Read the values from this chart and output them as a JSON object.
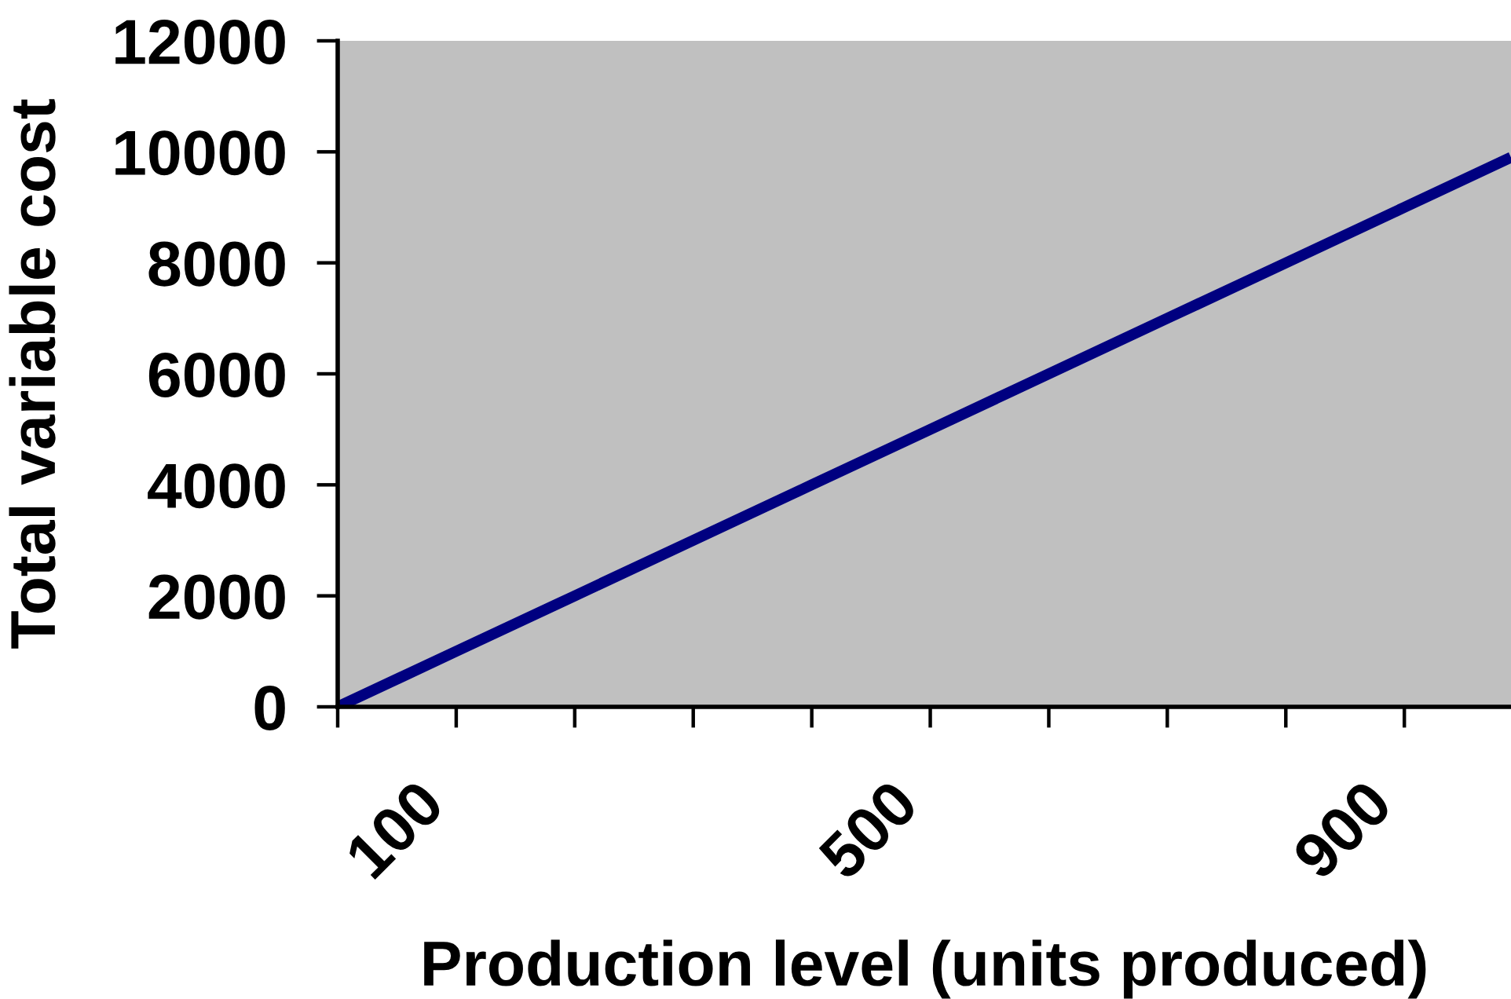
{
  "chart_data": {
    "type": "line",
    "xlabel": "Production level (units produced)",
    "ylabel": "Total variable cost",
    "x": [
      0,
      100,
      200,
      300,
      400,
      500,
      600,
      700,
      800,
      900,
      990
    ],
    "values": [
      0,
      1000,
      2000,
      3000,
      4000,
      5000,
      6000,
      7000,
      8000,
      9000,
      9900
    ],
    "color": "#000080",
    "xlim": [
      0,
      990
    ],
    "xticks": [
      {
        "value": 0,
        "label": null
      },
      {
        "value": 100,
        "label": "100"
      },
      {
        "value": 200,
        "label": null
      },
      {
        "value": 300,
        "label": null
      },
      {
        "value": 400,
        "label": null
      },
      {
        "value": 500,
        "label": "500"
      },
      {
        "value": 600,
        "label": null
      },
      {
        "value": 700,
        "label": null
      },
      {
        "value": 800,
        "label": null
      },
      {
        "value": 900,
        "label": "900"
      }
    ],
    "ylim": [
      0,
      12000
    ],
    "yticks": [
      0,
      2000,
      4000,
      6000,
      8000,
      10000,
      12000
    ],
    "grid": false,
    "marker": "none",
    "line_style": "solid"
  }
}
